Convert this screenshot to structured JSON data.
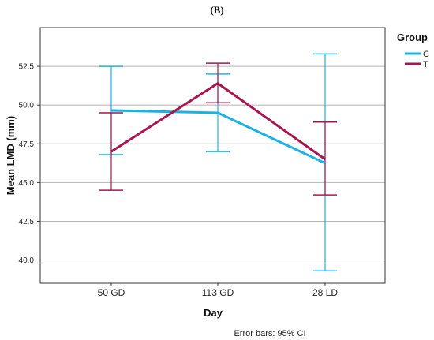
{
  "chart_data": {
    "type": "line",
    "panel_label": "(B)",
    "xlabel": "Day",
    "ylabel": "Mean LMD (mm)",
    "categories": [
      "50 GD",
      "113 GD",
      "28 LD"
    ],
    "ylim": [
      38.5,
      55
    ],
    "yticks": [
      "40.0",
      "42.5",
      "45.0",
      "47.5",
      "50.0",
      "52.5"
    ],
    "grid": "horizontal",
    "legend": {
      "title": "Group",
      "placement": "top-right"
    },
    "footnote": "Error bars: 95% CI",
    "series": [
      {
        "name": "C",
        "color": "#1ab2e6",
        "values": [
          49.65,
          49.5,
          46.25
        ],
        "ci_low": [
          46.8,
          47.0,
          39.3
        ],
        "ci_high": [
          52.5,
          52.0,
          53.3
        ]
      },
      {
        "name": "T",
        "color": "#a6174f",
        "values": [
          47.0,
          51.4,
          46.5
        ],
        "ci_low": [
          44.5,
          50.15,
          44.2
        ],
        "ci_high": [
          49.5,
          52.7,
          48.9
        ]
      }
    ]
  }
}
